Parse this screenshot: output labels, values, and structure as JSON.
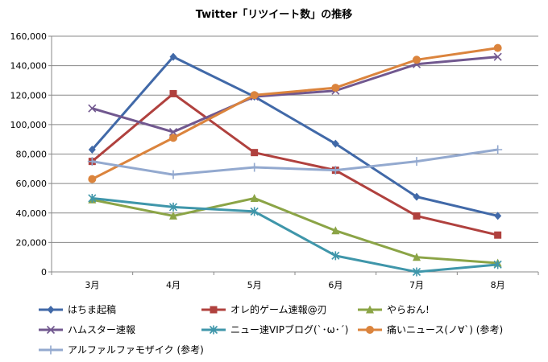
{
  "chart_data": {
    "type": "line",
    "title": "Twitter「リツイート数」の推移",
    "xlabel": "",
    "ylabel": "",
    "categories": [
      "3月",
      "4月",
      "5月",
      "6月",
      "7月",
      "8月"
    ],
    "ylim": [
      0,
      160000
    ],
    "yticks": [
      0,
      20000,
      40000,
      60000,
      80000,
      100000,
      120000,
      140000,
      160000
    ],
    "ytick_labels": [
      "0",
      "20,000",
      "40,000",
      "60,000",
      "80,000",
      "100,000",
      "120,000",
      "140,000",
      "160,000"
    ],
    "grid": "horizontal",
    "legend_position": "bottom",
    "series": [
      {
        "name": "はちま起稿",
        "color": "#4169A8",
        "marker": "diamond",
        "values": [
          83000,
          146000,
          119000,
          87000,
          51000,
          38000
        ]
      },
      {
        "name": "オレ的ゲーム速報@刃",
        "color": "#B0413E",
        "marker": "square",
        "values": [
          75000,
          121000,
          81000,
          69000,
          38000,
          25000
        ]
      },
      {
        "name": "やらおん!",
        "color": "#8BA446",
        "marker": "triangle",
        "values": [
          49000,
          38000,
          50000,
          28000,
          10000,
          6000
        ]
      },
      {
        "name": "ハムスター速報",
        "color": "#71588F",
        "marker": "x",
        "values": [
          111000,
          95000,
          119000,
          123000,
          141000,
          146000
        ]
      },
      {
        "name": "ニュー速VIPブログ(`･ω･´)",
        "color": "#3F96AA",
        "marker": "star",
        "values": [
          50000,
          44000,
          41000,
          11000,
          0,
          5000
        ]
      },
      {
        "name": "痛いニュース(ノ∀`) (参考)",
        "color": "#DB843D",
        "marker": "circle",
        "values": [
          63000,
          91000,
          120000,
          125000,
          144000,
          152000
        ]
      },
      {
        "name": "アルファルファモザイク (参考)",
        "color": "#93A9CF",
        "marker": "plus",
        "values": [
          75000,
          66000,
          71000,
          69000,
          75000,
          83000
        ]
      }
    ]
  }
}
